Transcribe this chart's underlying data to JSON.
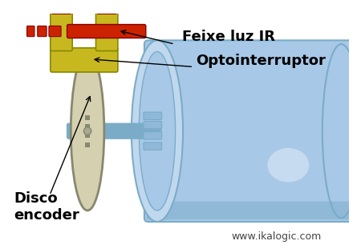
{
  "bg_color": "#ffffff",
  "label_feixe": "Feixe luz IR",
  "label_opto": "Optointerruptor",
  "label_disco": "Disco\nencoder",
  "label_web": "www.ikalogic.com",
  "motor_color": "#a8c8e8",
  "motor_dark": "#7aacc8",
  "motor_shadow": "#5588aa",
  "disc_color": "#d4d0b0",
  "disc_edge": "#888870",
  "opto_yellow": "#c8b820",
  "opto_red": "#cc2200",
  "ir_beam_color": "#cc2200",
  "shaft_color": "#7aacc8",
  "label_color": "#000000",
  "label_fontsize": 13,
  "small_label_fontsize": 9
}
